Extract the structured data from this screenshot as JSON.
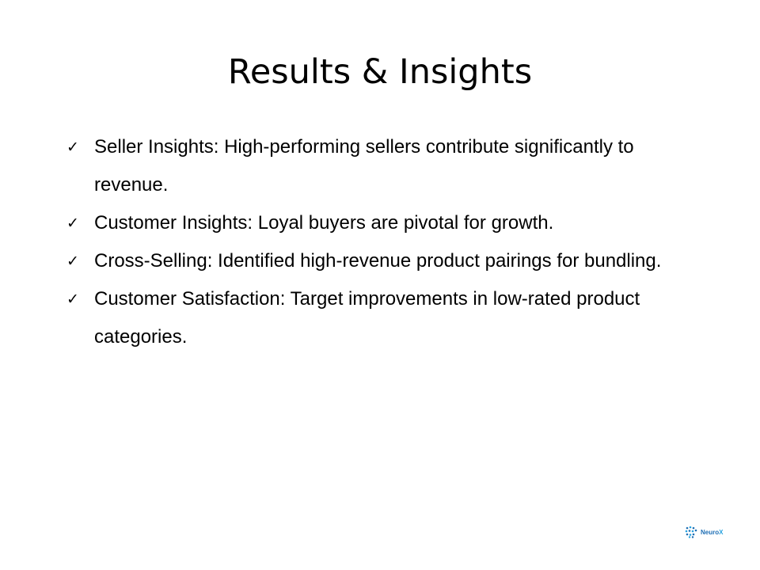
{
  "slide": {
    "title": "Results & Insights",
    "bullets": [
      {
        "check": "✓",
        "text": "Seller Insights: High-performing sellers contribute significantly to revenue."
      },
      {
        "check": "✓",
        "text": "Customer Insights: Loyal buyers are pivotal for growth."
      },
      {
        "check": "✓",
        "text": "Cross-Selling: Identified high-revenue product pairings for bundling."
      },
      {
        "check": "✓",
        "text": "Customer Satisfaction: Target improvements in low-rated product categories."
      }
    ],
    "logo": {
      "name_main": "Neuro",
      "name_accent": "X",
      "icon": "neurox-logo-icon",
      "color_primary": "#1f6fb5",
      "color_accent": "#29a3e0"
    }
  }
}
